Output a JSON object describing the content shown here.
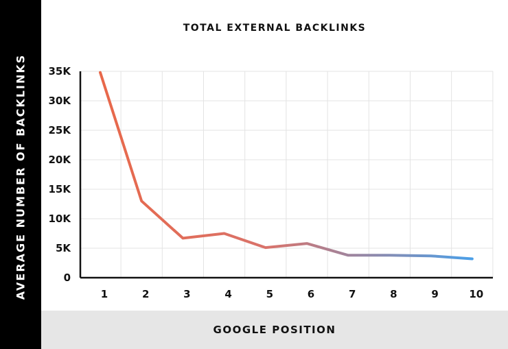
{
  "chart_data": {
    "type": "line",
    "title": "TOTAL EXTERNAL BACKLINKS",
    "xlabel": "GOOGLE POSITION",
    "ylabel": "AVERAGE NUMBER OF BACKLINKS",
    "x": [
      "1",
      "2",
      "3",
      "4",
      "5",
      "6",
      "7",
      "8",
      "9",
      "10"
    ],
    "values": [
      34800,
      13000,
      6700,
      7500,
      5100,
      5800,
      3800,
      3800,
      3700,
      3200
    ],
    "yticks": [
      {
        "value": 0,
        "label": "0"
      },
      {
        "value": 5000,
        "label": "5K"
      },
      {
        "value": 10000,
        "label": "10K"
      },
      {
        "value": 15000,
        "label": "15K"
      },
      {
        "value": 20000,
        "label": "20K"
      },
      {
        "value": 25000,
        "label": "25K"
      },
      {
        "value": 30000,
        "label": "30K"
      },
      {
        "value": 35000,
        "label": "35K"
      }
    ],
    "ylim": [
      0,
      35000
    ],
    "grid": true,
    "line_color_start": "#e8684a",
    "line_color_end": "#4a9fe8"
  }
}
